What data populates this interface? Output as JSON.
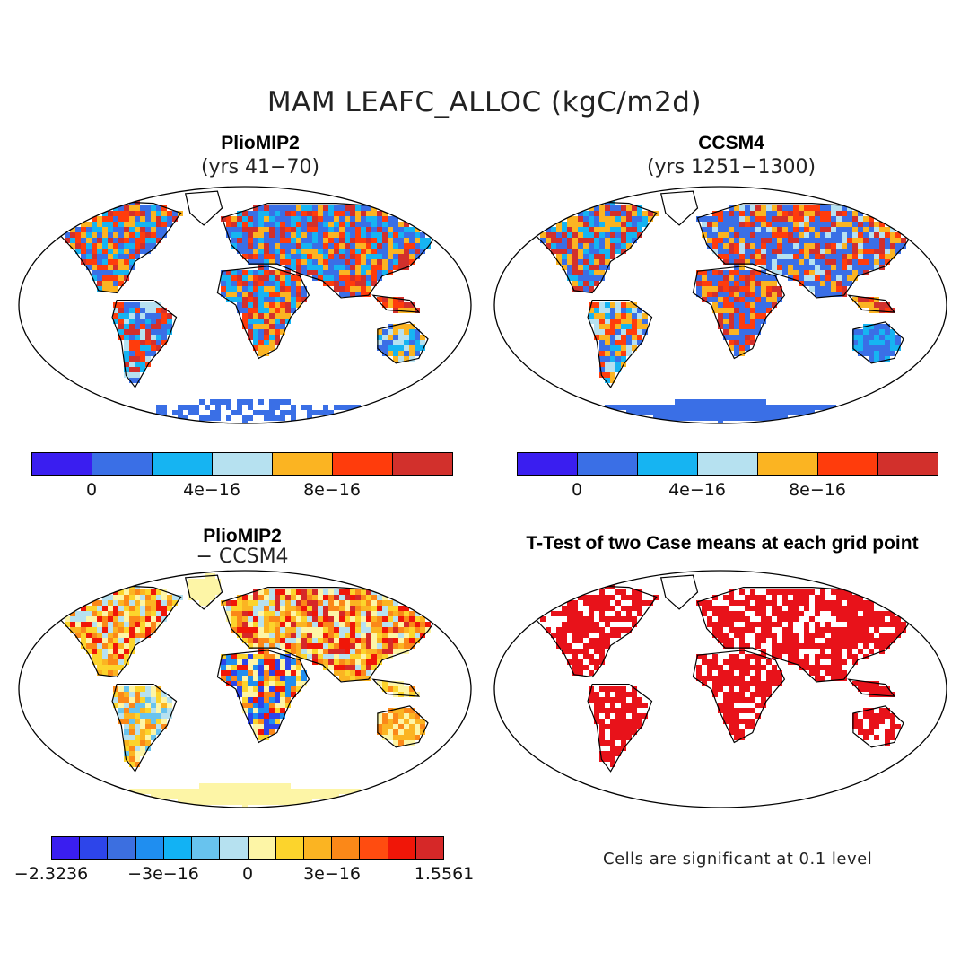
{
  "figure": {
    "title": "MAM LEAFC_ALLOC (kgC/m2d)"
  },
  "panels": [
    {
      "title": "PlioMIP2",
      "subtitle": "(yrs 41−70)",
      "palette": "abs"
    },
    {
      "title": "CCSM4",
      "subtitle": "(yrs 1251−1300)",
      "palette": "abs2"
    },
    {
      "title": "PlioMIP2",
      "subtitle": "− CCSM4",
      "palette": "diff"
    },
    {
      "title": "T-Test of two Case means at each grid point",
      "subtitle": "",
      "palette": "ttest"
    }
  ],
  "colorbars": {
    "abs": {
      "colors": [
        "#3a1ef0",
        "#3a6fe6",
        "#16b4f2",
        "#b6e1f0",
        "#fbb422",
        "#ff3c0c",
        "#d2302c"
      ],
      "ticks": [
        "0",
        "4e−16",
        "8e−16"
      ]
    },
    "diff": {
      "colors": [
        "#3a1ef0",
        "#2d45ea",
        "#3c6fe0",
        "#1f8ef0",
        "#12b2f4",
        "#68c3ee",
        "#b6e1f0",
        "#fdf5a6",
        "#fcd42c",
        "#fbb422",
        "#fb8818",
        "#ff4c10",
        "#f01608",
        "#d62828"
      ],
      "ticks": [
        "−2.3236",
        "−3e−16",
        "0",
        "3e−16",
        "1.5561"
      ]
    }
  },
  "ttest": {
    "note": "Cells are significant at 0.1 level",
    "color": "#e8121a"
  },
  "map_colors": {
    "ocean": "#ffffff",
    "coast": "#000000"
  }
}
